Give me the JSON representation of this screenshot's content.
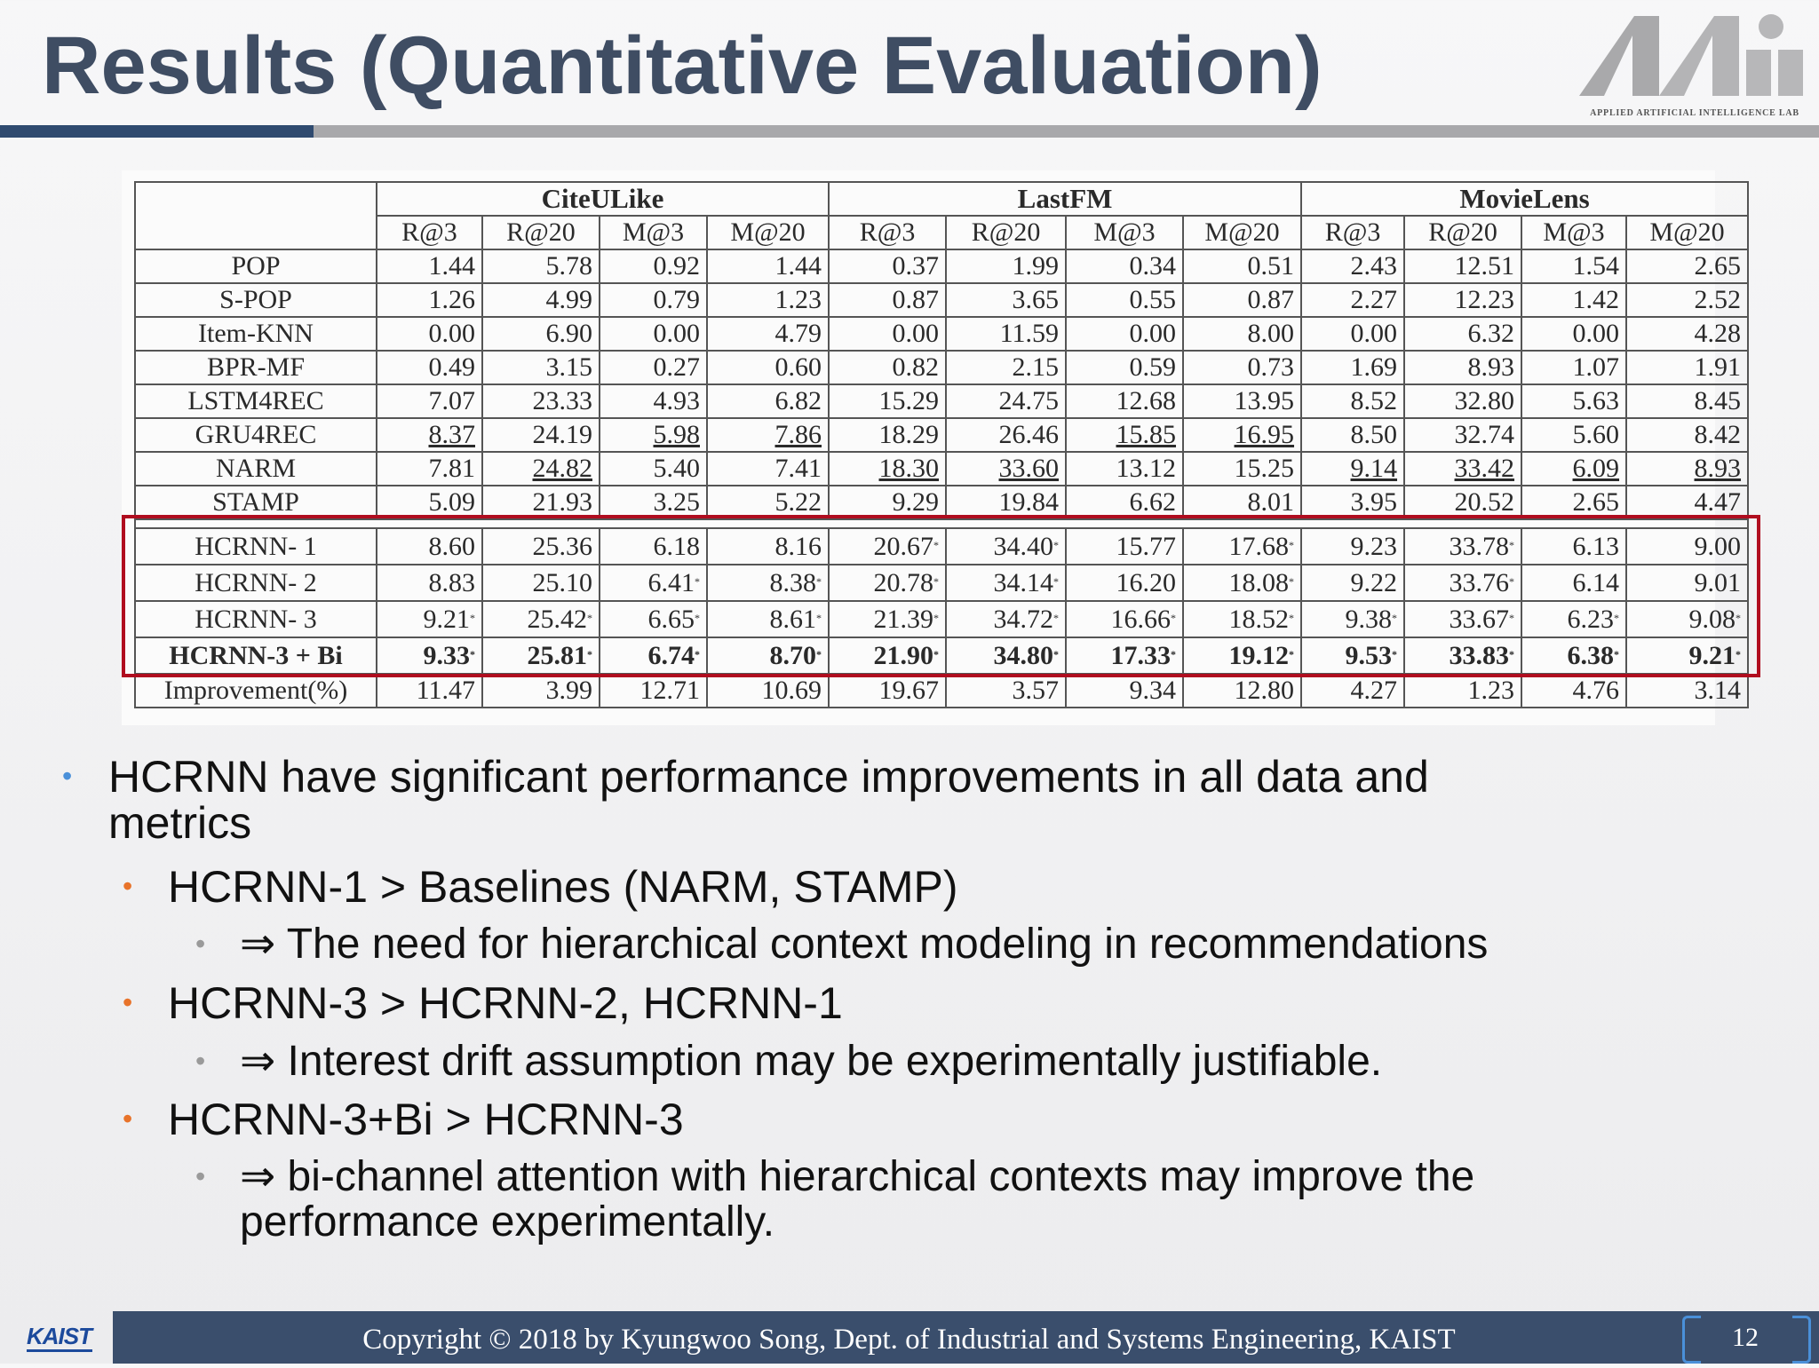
{
  "slide": {
    "title": "Results (Quantitative Evaluation)",
    "logo_text": "APPLIED ARTIFICIAL INTELLIGENCE LAB",
    "logo_mark": "Mi",
    "footer": "Copyright © 2018 by Kyungwoo Song, Dept. of Industrial and Systems Engineering, KAIST",
    "kaist_logo": "KAIST",
    "page_number": "12",
    "colors": {
      "title": "#3f4d63",
      "rule_dark": "#2f4a6f",
      "footer_bar": "#3a4e6c",
      "highlight_box": "#b00d1f",
      "bullet_l1": "#4a90d9",
      "bullet_l2": "#e8732a",
      "bullet_l3": "#9a9a9a"
    }
  },
  "table": {
    "datasets": [
      "CiteULike",
      "LastFM",
      "MovieLens"
    ],
    "metrics": [
      "R@3",
      "R@20",
      "M@3",
      "M@20",
      "R@3",
      "R@20",
      "M@3",
      "M@20",
      "R@3",
      "R@20",
      "M@3",
      "M@20"
    ],
    "baselines": [
      {
        "name": "POP",
        "values": [
          "1.44",
          "5.78",
          "0.92",
          "1.44",
          "0.37",
          "1.99",
          "0.34",
          "0.51",
          "2.43",
          "12.51",
          "1.54",
          "2.65"
        ]
      },
      {
        "name": "S-POP",
        "values": [
          "1.26",
          "4.99",
          "0.79",
          "1.23",
          "0.87",
          "3.65",
          "0.55",
          "0.87",
          "2.27",
          "12.23",
          "1.42",
          "2.52"
        ]
      },
      {
        "name": "Item-KNN",
        "values": [
          "0.00",
          "6.90",
          "0.00",
          "4.79",
          "0.00",
          "11.59",
          "0.00",
          "8.00",
          "0.00",
          "6.32",
          "0.00",
          "4.28"
        ]
      },
      {
        "name": "BPR-MF",
        "values": [
          "0.49",
          "3.15",
          "0.27",
          "0.60",
          "0.82",
          "2.15",
          "0.59",
          "0.73",
          "1.69",
          "8.93",
          "1.07",
          "1.91"
        ]
      },
      {
        "name": "LSTM4REC",
        "values": [
          "7.07",
          "23.33",
          "4.93",
          "6.82",
          "15.29",
          "24.75",
          "12.68",
          "13.95",
          "8.52",
          "32.80",
          "5.63",
          "8.45"
        ]
      },
      {
        "name": "GRU4REC",
        "values": [
          "8.37",
          "24.19",
          "5.98",
          "7.86",
          "18.29",
          "26.46",
          "15.85",
          "16.95",
          "8.50",
          "32.74",
          "5.60",
          "8.42"
        ],
        "underlined": [
          0,
          2,
          3,
          6,
          7
        ]
      },
      {
        "name": "NARM",
        "values": [
          "7.81",
          "24.82",
          "5.40",
          "7.41",
          "18.30",
          "33.60",
          "13.12",
          "15.25",
          "9.14",
          "33.42",
          "6.09",
          "8.93"
        ],
        "underlined": [
          1,
          4,
          5,
          8,
          9,
          10,
          11
        ]
      },
      {
        "name": "STAMP",
        "values": [
          "5.09",
          "21.93",
          "3.25",
          "5.22",
          "9.29",
          "19.84",
          "6.62",
          "8.01",
          "3.95",
          "20.52",
          "2.65",
          "4.47"
        ]
      }
    ],
    "proposed": [
      {
        "name": "HCRNN- 1",
        "values": [
          "8.60",
          "25.36",
          "6.18",
          "8.16",
          "20.67",
          "34.40",
          "15.77",
          "17.68",
          "9.23",
          "33.78",
          "6.13",
          "9.00"
        ],
        "starred": [
          4,
          5,
          7,
          9
        ]
      },
      {
        "name": "HCRNN- 2",
        "values": [
          "8.83",
          "25.10",
          "6.41",
          "8.38",
          "20.78",
          "34.14",
          "16.20",
          "18.08",
          "9.22",
          "33.76",
          "6.14",
          "9.01"
        ],
        "starred": [
          2,
          3,
          4,
          5,
          7,
          9
        ]
      },
      {
        "name": "HCRNN- 3",
        "values": [
          "9.21",
          "25.42",
          "6.65",
          "8.61",
          "21.39",
          "34.72",
          "16.66",
          "18.52",
          "9.38",
          "33.67",
          "6.23",
          "9.08"
        ],
        "starred": [
          0,
          1,
          2,
          3,
          4,
          5,
          6,
          7,
          8,
          9,
          10,
          11
        ]
      },
      {
        "name": "HCRNN-3 + Bi",
        "values": [
          "9.33",
          "25.81",
          "6.74",
          "8.70",
          "21.90",
          "34.80",
          "17.33",
          "19.12",
          "9.53",
          "33.83",
          "6.38",
          "9.21"
        ],
        "starred": [
          0,
          1,
          2,
          3,
          4,
          5,
          6,
          7,
          8,
          9,
          10,
          11
        ],
        "bold": true
      }
    ],
    "improvement": {
      "name": "Improvement(%)",
      "values": [
        "11.47",
        "3.99",
        "12.71",
        "10.69",
        "19.67",
        "3.57",
        "9.34",
        "12.80",
        "4.27",
        "1.23",
        "4.76",
        "3.14"
      ]
    }
  },
  "bullets": [
    {
      "level": 1,
      "text": "HCRNN have significant performance improvements in all data and"
    },
    {
      "level": 1,
      "cont": true,
      "text": "metrics"
    },
    {
      "level": 2,
      "text": "HCRNN-1 > Baselines (NARM, STAMP)"
    },
    {
      "level": 3,
      "text": "⇒ The need for hierarchical context modeling in recommendations"
    },
    {
      "level": 2,
      "text": "HCRNN-3 > HCRNN-2, HCRNN-1"
    },
    {
      "level": 3,
      "text": "⇒ Interest drift assumption may be experimentally justifiable."
    },
    {
      "level": 2,
      "text": "HCRNN-3+Bi > HCRNN-3"
    },
    {
      "level": 3,
      "text": "⇒ bi-channel attention with hierarchical contexts may improve the"
    },
    {
      "level": 3,
      "cont": true,
      "text": "performance experimentally."
    }
  ]
}
